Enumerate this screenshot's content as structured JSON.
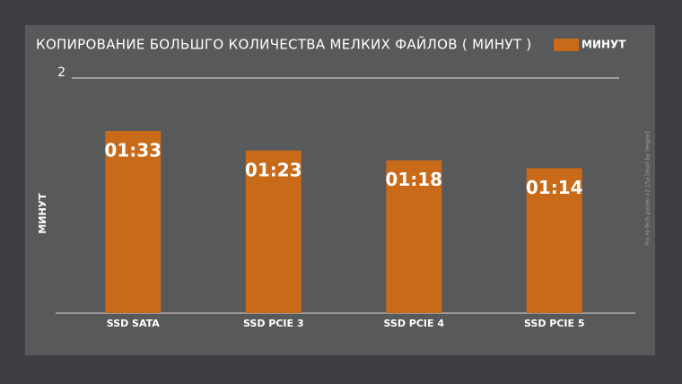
{
  "chart_data": {
    "type": "bar",
    "title": "КОПИРОВАНИЕ БОЛЬШГО КОЛИЧЕСТВА МЕЛКИХ ФАЙЛОВ ( МИНУТ )",
    "y_label": "МИНУТ",
    "watermark": "Pro Hi-Tech poster v2.15a [mod by Vesper]",
    "categories": [
      "SSD SATA",
      "SSD PCIE 3",
      "SSD PCIE 4",
      "SSD PCIE 5"
    ],
    "series": [
      {
        "name": "МИНУТ",
        "color": "#c96a19",
        "values": [
          1.55,
          1.3833,
          1.3,
          1.2333
        ],
        "value_labels": [
          "01:33",
          "01:23",
          "01:18",
          "01:14"
        ]
      }
    ],
    "ylim": [
      0,
      2
    ],
    "yticks": [
      2
    ],
    "legend": "top-right"
  }
}
